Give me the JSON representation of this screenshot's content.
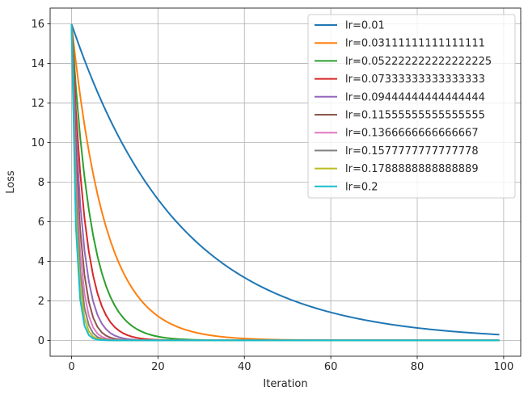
{
  "chart_data": {
    "type": "line",
    "title": "",
    "xlabel": "Iteration",
    "ylabel": "Loss",
    "xlim": [
      -4.95,
      103.95
    ],
    "ylim": [
      -0.8,
      16.8
    ],
    "x_ticks": [
      0,
      20,
      40,
      60,
      80,
      100
    ],
    "y_ticks": [
      0,
      2,
      4,
      6,
      8,
      10,
      12,
      14,
      16
    ],
    "grid": true,
    "legend_position": "top-right",
    "x": {
      "start": 0,
      "end": 99,
      "step": 1
    },
    "initial_loss": 16,
    "series": [
      {
        "name": "lr=0.01",
        "lr": 0.01,
        "color": "#1f77b4"
      },
      {
        "name": "lr=0.03111111111111111",
        "lr": 0.03111111111111111,
        "color": "#ff7f0e"
      },
      {
        "name": "lr=0.052222222222222225",
        "lr": 0.052222222222222225,
        "color": "#2ca02c"
      },
      {
        "name": "lr=0.07333333333333333",
        "lr": 0.07333333333333333,
        "color": "#d62728"
      },
      {
        "name": "lr=0.09444444444444444",
        "lr": 0.09444444444444444,
        "color": "#9467bd"
      },
      {
        "name": "lr=0.11555555555555555",
        "lr": 0.11555555555555555,
        "color": "#8c564b"
      },
      {
        "name": "lr=0.1366666666666667",
        "lr": 0.1366666666666667,
        "color": "#e377c2"
      },
      {
        "name": "lr=0.1577777777777778",
        "lr": 0.1577777777777778,
        "color": "#7f7f7f"
      },
      {
        "name": "lr=0.1788888888888889",
        "lr": 0.1788888888888889,
        "color": "#bcbd22"
      },
      {
        "name": "lr=0.2",
        "lr": 0.2,
        "color": "#17becf"
      }
    ]
  }
}
